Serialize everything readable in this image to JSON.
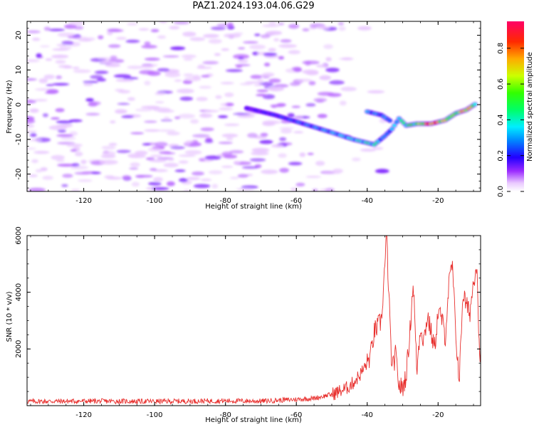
{
  "chart_data": [
    {
      "type": "heatmap",
      "title": "PAZ1.2024.193.04.06.G29",
      "xlabel": "Height of straight line (km)",
      "ylabel": "Frequency (Hz)",
      "xlim": [
        -136,
        -8
      ],
      "ylim": [
        -25,
        24
      ],
      "xticks": [
        -120,
        -100,
        -80,
        -60,
        -40,
        -20
      ],
      "yticks": [
        -20,
        -10,
        0,
        10,
        20
      ],
      "colormap": "gist_rainbow",
      "colorbar": {
        "label": "Normalized spectral amplitude",
        "range": [
          0,
          0.95
        ],
        "ticks": [
          0.0,
          0.2,
          0.4,
          0.6,
          0.8
        ]
      },
      "signal_track": [
        {
          "x": -74,
          "y": -1.0,
          "amp": 0.15
        },
        {
          "x": -66,
          "y": -3.0,
          "amp": 0.2
        },
        {
          "x": -58,
          "y": -5.5,
          "amp": 0.25
        },
        {
          "x": -50,
          "y": -8.0,
          "amp": 0.3
        },
        {
          "x": -44,
          "y": -10.0,
          "amp": 0.35
        },
        {
          "x": -38,
          "y": -11.5,
          "amp": 0.4
        },
        {
          "x": -35,
          "y": -9.0,
          "amp": 0.25
        },
        {
          "x": -33,
          "y": -7.0,
          "amp": 0.3
        },
        {
          "x": -31,
          "y": -4.0,
          "amp": 0.35
        },
        {
          "x": -29,
          "y": -6.0,
          "amp": 0.45
        },
        {
          "x": -26,
          "y": -5.5,
          "amp": 0.5
        },
        {
          "x": -22,
          "y": -5.5,
          "amp": 0.8
        },
        {
          "x": -18,
          "y": -4.5,
          "amp": 0.6
        },
        {
          "x": -15,
          "y": -2.5,
          "amp": 0.5
        },
        {
          "x": -12,
          "y": -1.5,
          "amp": 0.75
        },
        {
          "x": -9,
          "y": 0.5,
          "amp": 0.4
        }
      ],
      "branch_track": [
        {
          "x": -40,
          "y": -2.0,
          "amp": 0.3
        },
        {
          "x": -36,
          "y": -3.0,
          "amp": 0.25
        },
        {
          "x": -33,
          "y": -5.0,
          "amp": 0.3
        }
      ],
      "noise_region": {
        "x": [
          -136,
          -45
        ],
        "y": [
          -25,
          24
        ]
      }
    },
    {
      "type": "line",
      "xlabel": "Height of straight line (km)",
      "ylabel": "SNR (10 * v/v)",
      "xlim": [
        -136,
        -8
      ],
      "ylim": [
        0,
        6000
      ],
      "xticks": [
        -120,
        -100,
        -80,
        -60,
        -40,
        -20
      ],
      "yticks": [
        2000,
        4000,
        6000
      ],
      "color": "#e8302e",
      "series": [
        {
          "x": [
            -136,
            -120,
            -100,
            -80,
            -70,
            -60,
            -55,
            -50,
            -46,
            -44,
            -42,
            -40,
            -39,
            -38,
            -37,
            -36,
            -35,
            -34.5,
            -34,
            -33,
            -32,
            -31,
            -30,
            -29,
            -28,
            -27,
            -26,
            -25,
            -24,
            -23,
            -22,
            -21,
            -20,
            -19,
            -18,
            -17,
            -16,
            -15,
            -14,
            -13,
            -12,
            -11,
            -10,
            -9,
            -8.5,
            -8
          ],
          "y": [
            150,
            160,
            150,
            170,
            160,
            220,
            260,
            400,
            600,
            800,
            1100,
            1500,
            1800,
            2600,
            2800,
            3000,
            5000,
            6000,
            4200,
            1200,
            1800,
            700,
            600,
            1100,
            2500,
            4400,
            1200,
            2800,
            2300,
            3200,
            2600,
            2000,
            3300,
            3100,
            2400,
            4200,
            5000,
            2500,
            900,
            4000,
            3500,
            3300,
            4400,
            5100,
            2200,
            1800
          ]
        }
      ]
    }
  ]
}
